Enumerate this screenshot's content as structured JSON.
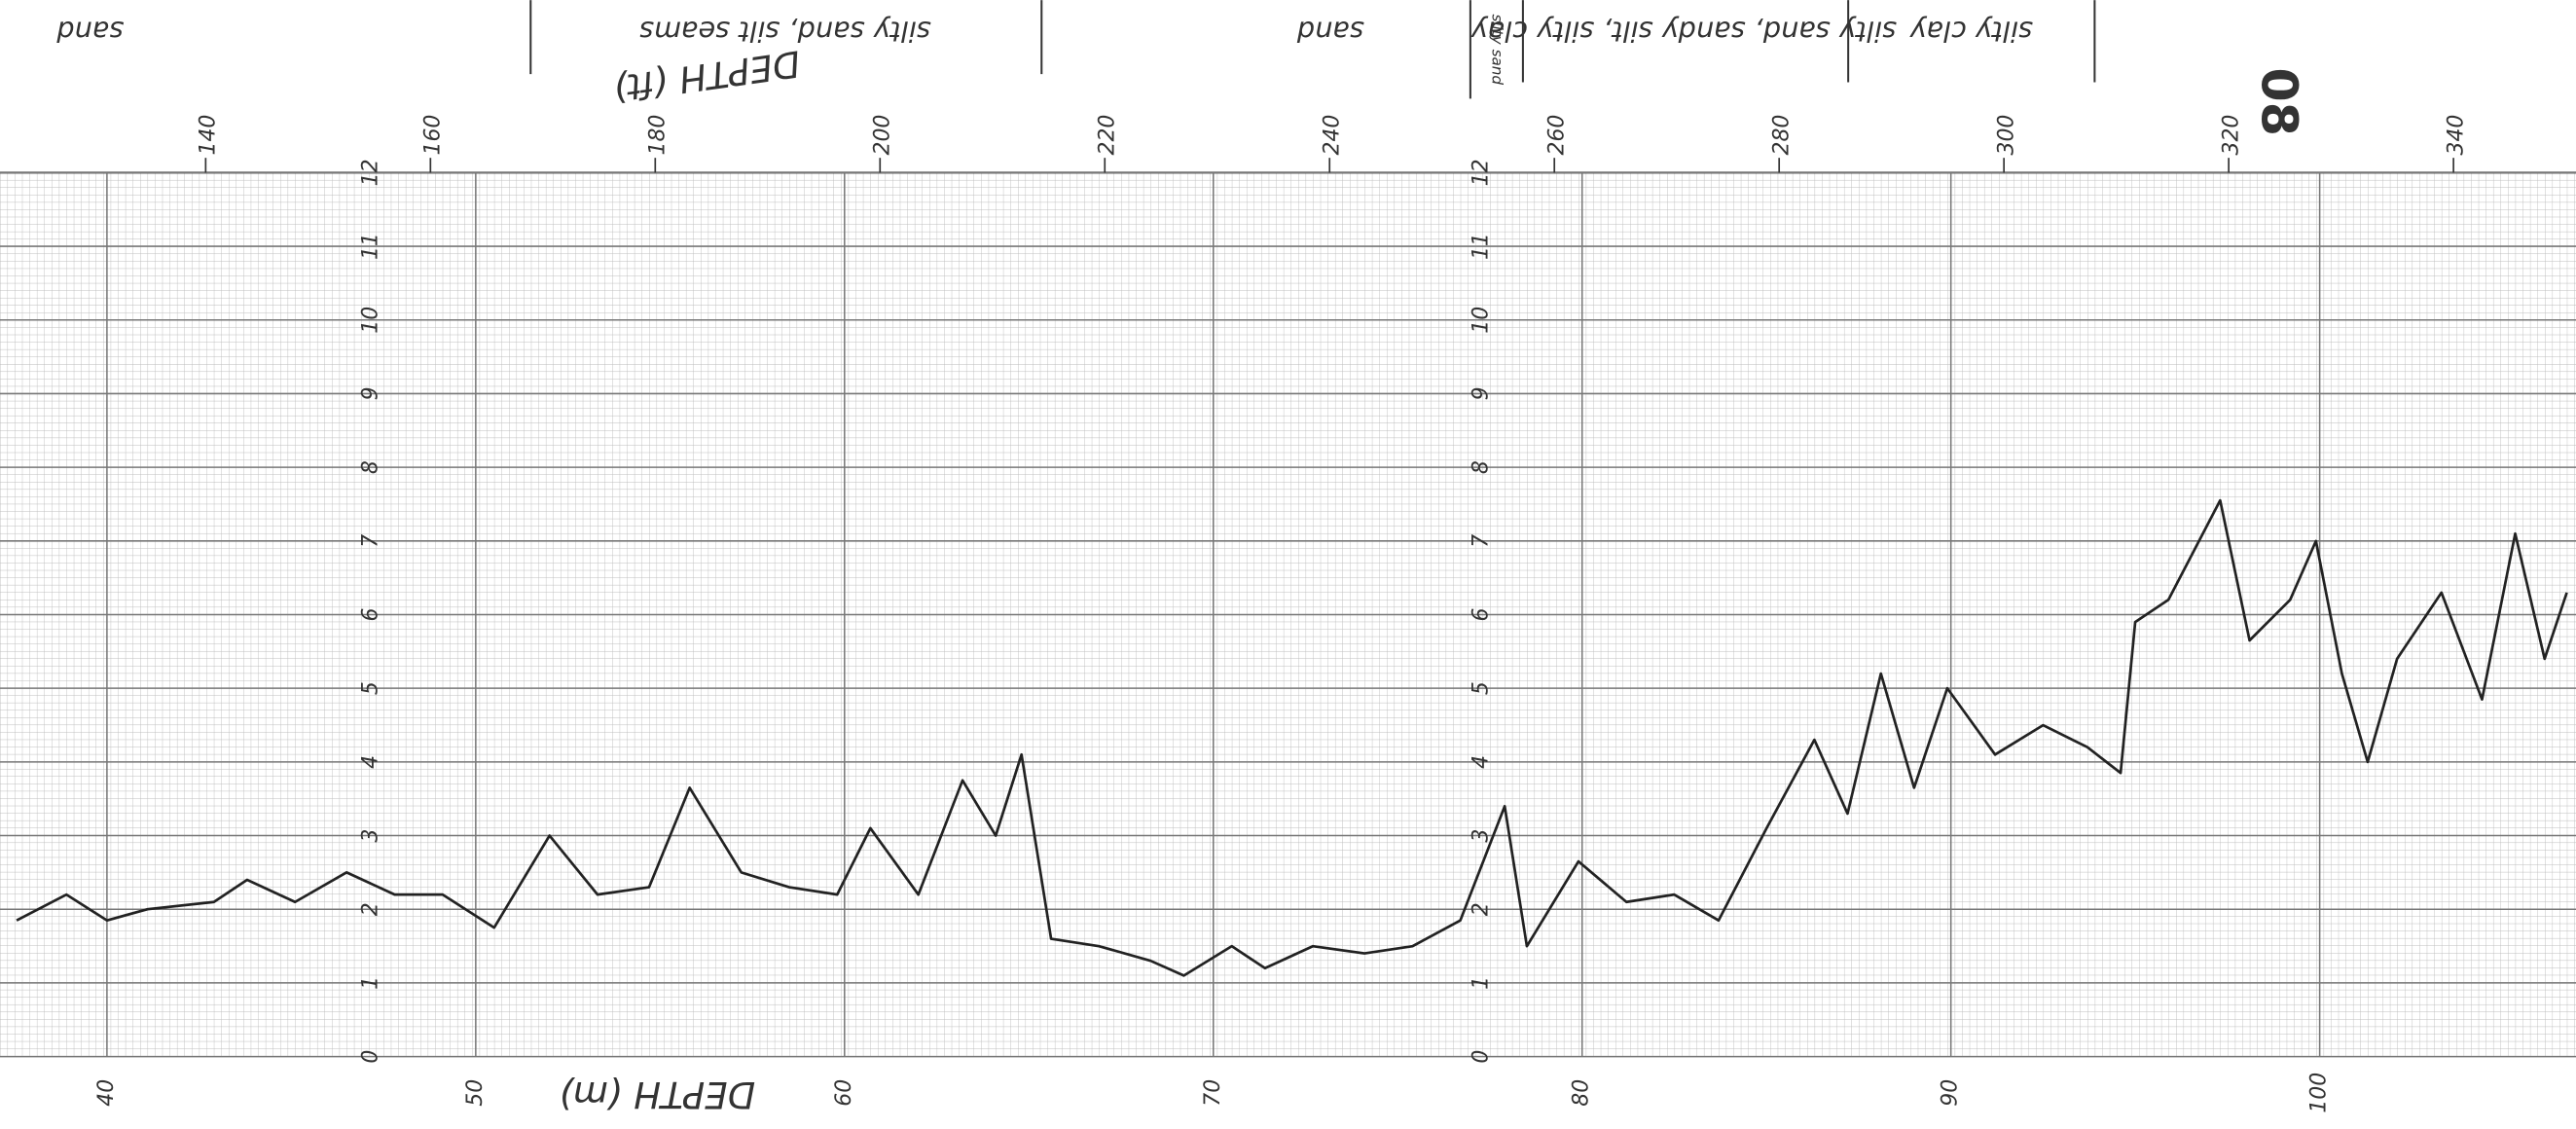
{
  "chart_data": {
    "type": "line",
    "color": "#222222",
    "x_label": "DEPTH (m)",
    "x2_label": "DEPTH (ft)",
    "soil_layers": [
      "sand",
      "silty sand, silt seams",
      "sand",
      "silty sand",
      "silty sand, sandy silt, silty clay",
      "silty clay"
    ],
    "annotation": "08",
    "x": [
      37.55,
      38.9,
      40,
      41.1,
      42.9,
      43.8,
      45.1,
      46.5,
      47.8,
      49.1,
      50.5,
      52.0,
      53.3,
      54.7,
      55.8,
      57.2,
      58.5,
      59.8,
      60.7,
      62.0,
      63.2,
      64.1,
      64.8,
      65.6,
      66.9,
      68.3,
      69.2,
      70.5,
      71.4,
      72.7,
      74.1,
      75.4,
      76.7,
      77.9,
      78.5,
      79.9,
      81.2,
      82.5,
      83.7,
      85.0,
      86.3,
      87.2,
      88.1,
      89.0,
      89.9,
      91.2,
      92.5,
      93.7,
      94.6,
      95.0,
      95.9,
      97.3,
      98.1,
      99.2,
      99.9,
      100.6,
      101.3,
      102.1,
      103.3,
      104.4,
      105.3,
      106.1,
      106.7
    ],
    "values": [
      1.85,
      2.2,
      1.85,
      2.0,
      2.1,
      2.4,
      2.1,
      2.5,
      2.2,
      2.2,
      1.75,
      3.0,
      2.2,
      2.3,
      3.65,
      2.5,
      2.3,
      2.2,
      3.1,
      2.2,
      3.75,
      3.0,
      4.1,
      1.6,
      1.5,
      1.3,
      1.1,
      1.5,
      1.2,
      1.5,
      1.4,
      1.5,
      1.85,
      3.4,
      1.5,
      2.65,
      2.1,
      2.2,
      1.85,
      3.1,
      4.3,
      3.3,
      5.2,
      3.65,
      5.0,
      4.1,
      4.5,
      4.2,
      3.85,
      5.9,
      6.2,
      7.55,
      5.65,
      6.2,
      7.0,
      5.2,
      4.0,
      5.4,
      6.3,
      4.85,
      7.1,
      5.4,
      6.3
    ],
    "xlim": [
      37.1,
      106.95
    ],
    "xticks": [
      40,
      50,
      60,
      70,
      80,
      90,
      100
    ],
    "x2lim": [
      121.7,
      350.9
    ],
    "x2ticks": [
      140,
      160,
      180,
      200,
      220,
      240,
      260,
      280,
      300,
      320,
      340
    ],
    "ylim": [
      0,
      12
    ],
    "yticks": [
      0,
      1,
      2,
      3,
      4,
      5,
      6,
      7,
      8,
      9,
      10,
      11,
      12
    ],
    "grid": true
  }
}
